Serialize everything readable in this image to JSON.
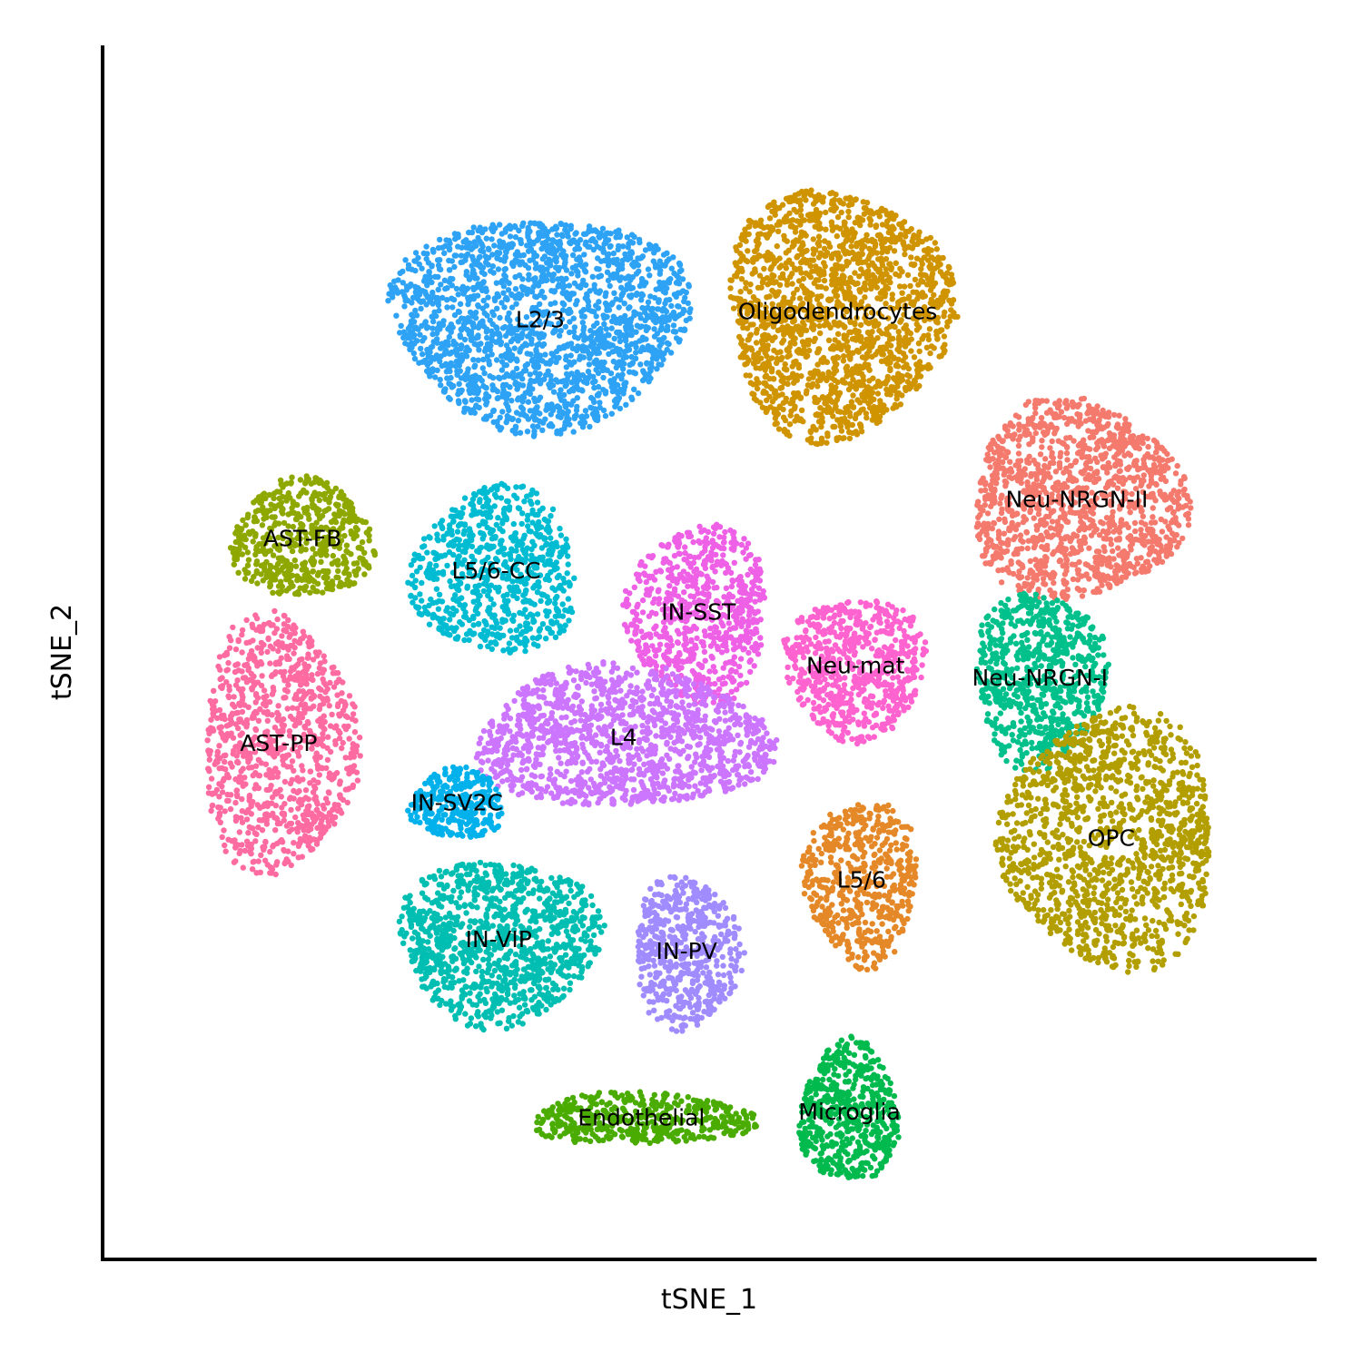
{
  "chart_data": {
    "type": "scatter",
    "title": "",
    "xlabel": "tSNE_1",
    "ylabel": "tSNE_2",
    "xlim": [
      0,
      100
    ],
    "ylim": [
      0,
      100
    ],
    "ticks_shown": false,
    "grid": false,
    "legend": "none",
    "clusters": [
      {
        "name": "L2/3",
        "color": "#2EA3F5",
        "center": [
          35.5,
          77.6
        ],
        "spread": [
          12.5,
          9.0
        ],
        "n": 1900
      },
      {
        "name": "Oligodendrocytes",
        "color": "#CF9400",
        "center": [
          60.5,
          78.3
        ],
        "spread": [
          9.5,
          10.5
        ],
        "n": 1700
      },
      {
        "name": "Neu-NRGN-II",
        "color": "#F57A6E",
        "center": [
          80.6,
          62.5
        ],
        "spread": [
          9.0,
          8.5
        ],
        "n": 1300
      },
      {
        "name": "AST-FB",
        "color": "#8EA800",
        "center": [
          15.5,
          59.2
        ],
        "spread": [
          6.0,
          5.0
        ],
        "n": 550
      },
      {
        "name": "L5/6-CC",
        "color": "#00BCD3",
        "center": [
          31.8,
          56.5
        ],
        "spread": [
          7.0,
          7.0
        ],
        "n": 750
      },
      {
        "name": "IN-SST",
        "color": "#EE60E6",
        "center": [
          48.8,
          53.0
        ],
        "spread": [
          6.0,
          7.5
        ],
        "n": 700
      },
      {
        "name": "Neu-mat",
        "color": "#FF63CF",
        "center": [
          62.0,
          48.5
        ],
        "spread": [
          6.0,
          6.0
        ],
        "n": 650
      },
      {
        "name": "Neu-NRGN-I",
        "color": "#00C08B",
        "center": [
          77.5,
          47.5
        ],
        "spread": [
          5.5,
          7.5
        ],
        "n": 700
      },
      {
        "name": "AST-PP",
        "color": "#FD6BA0",
        "center": [
          13.5,
          42.0
        ],
        "spread": [
          6.5,
          11.0
        ],
        "n": 950
      },
      {
        "name": "L4",
        "color": "#CC75FF",
        "center": [
          42.5,
          42.5
        ],
        "spread": [
          12.5,
          6.0
        ],
        "n": 1300
      },
      {
        "name": "IN-SV2C",
        "color": "#00B1EB",
        "center": [
          28.5,
          37.0
        ],
        "spread": [
          4.0,
          3.0
        ],
        "n": 300
      },
      {
        "name": "OPC",
        "color": "#B39E00",
        "center": [
          83.5,
          34.0
        ],
        "spread": [
          9.0,
          11.0
        ],
        "n": 1300
      },
      {
        "name": "L5/6",
        "color": "#E48828",
        "center": [
          62.5,
          30.5
        ],
        "spread": [
          4.8,
          7.0
        ],
        "n": 550
      },
      {
        "name": "IN-VIP",
        "color": "#00BFB2",
        "center": [
          32.0,
          25.5
        ],
        "spread": [
          8.5,
          7.0
        ],
        "n": 1050
      },
      {
        "name": "IN-PV",
        "color": "#A08CFF",
        "center": [
          47.8,
          24.5
        ],
        "spread": [
          4.5,
          6.5
        ],
        "n": 550
      },
      {
        "name": "Endothelial",
        "color": "#4AAB00",
        "center": [
          44.0,
          10.5
        ],
        "spread": [
          9.5,
          2.2
        ],
        "n": 450
      },
      {
        "name": "Microglia",
        "color": "#00BA4E",
        "center": [
          61.5,
          11.0
        ],
        "spread": [
          4.2,
          6.0
        ],
        "n": 550
      }
    ]
  }
}
